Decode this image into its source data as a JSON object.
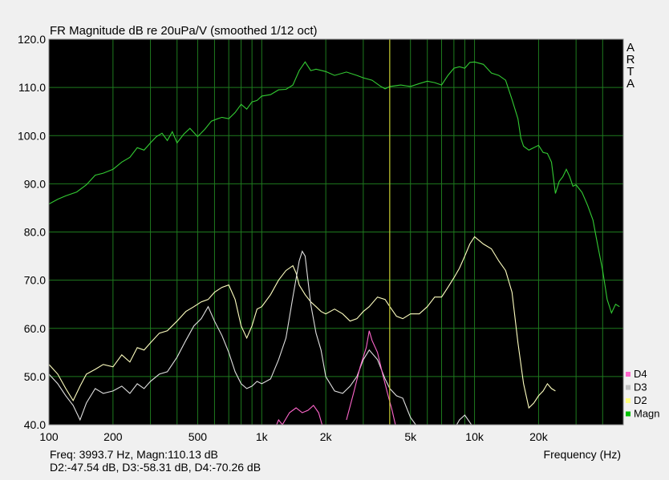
{
  "chart_data": {
    "type": "line",
    "title": "FR Magnitude dB re 20uPa/V (smoothed 1/12 oct)",
    "xlabel": "Frequency (Hz)",
    "ylabel": "",
    "x_scale": "log",
    "xlim": [
      100,
      50000
    ],
    "ylim": [
      40,
      120
    ],
    "grid": true,
    "legend_position": "right-bottom",
    "brand_letters": [
      "A",
      "R",
      "T",
      "A"
    ],
    "y_ticks": [
      {
        "value": 40,
        "label": "40.0"
      },
      {
        "value": 50,
        "label": "50.0"
      },
      {
        "value": 60,
        "label": "60.0"
      },
      {
        "value": 70,
        "label": "70.0"
      },
      {
        "value": 80,
        "label": "80.0"
      },
      {
        "value": 90,
        "label": "90.0"
      },
      {
        "value": 100,
        "label": "100.0"
      },
      {
        "value": 110,
        "label": "110.0"
      },
      {
        "value": 120,
        "label": "120.0"
      }
    ],
    "x_ticks": [
      {
        "value": 100,
        "label": "100"
      },
      {
        "value": 200,
        "label": "200"
      },
      {
        "value": 500,
        "label": "500"
      },
      {
        "value": 1000,
        "label": "1k"
      },
      {
        "value": 2000,
        "label": "2k"
      },
      {
        "value": 5000,
        "label": "5k"
      },
      {
        "value": 10000,
        "label": "10k"
      },
      {
        "value": 20000,
        "label": "20k"
      }
    ],
    "cursor": {
      "freq": 3993.7,
      "readout_line1": "Freq: 3993.7 Hz, Magn:110.13 dB",
      "readout_line2": "D2:-47.54 dB, D3:-58.31 dB, D4:-70.26 dB"
    },
    "colors": {
      "background": "#000000",
      "grid": "#1e7a1e",
      "cursor": "#c8c832",
      "Magn": "#33cc33",
      "D2": "#ffffc0",
      "D3": "#e0e0e0",
      "D4": "#ff66cc"
    },
    "legend": [
      {
        "name": "D4",
        "color": "#ff66cc"
      },
      {
        "name": "D3",
        "color": "#c0c0c0"
      },
      {
        "name": "D2",
        "color": "#ffff80"
      },
      {
        "name": "Magn",
        "color": "#00c000"
      }
    ],
    "series": [
      {
        "name": "Magn",
        "color": "#33cc33",
        "points": [
          [
            100,
            85.8
          ],
          [
            110,
            86.8
          ],
          [
            120,
            87.5
          ],
          [
            135,
            88.3
          ],
          [
            150,
            89.8
          ],
          [
            165,
            91.8
          ],
          [
            180,
            92.2
          ],
          [
            200,
            93.0
          ],
          [
            220,
            94.5
          ],
          [
            240,
            95.5
          ],
          [
            260,
            97.5
          ],
          [
            280,
            97.0
          ],
          [
            300,
            98.5
          ],
          [
            320,
            99.8
          ],
          [
            340,
            100.5
          ],
          [
            360,
            99.0
          ],
          [
            380,
            100.8
          ],
          [
            400,
            98.5
          ],
          [
            430,
            100.3
          ],
          [
            460,
            101.5
          ],
          [
            500,
            99.8
          ],
          [
            540,
            101.3
          ],
          [
            580,
            103.0
          ],
          [
            620,
            103.5
          ],
          [
            650,
            103.8
          ],
          [
            700,
            103.5
          ],
          [
            750,
            104.8
          ],
          [
            800,
            106.5
          ],
          [
            850,
            105.5
          ],
          [
            900,
            107.0
          ],
          [
            950,
            107.3
          ],
          [
            1000,
            108.2
          ],
          [
            1100,
            108.5
          ],
          [
            1200,
            109.5
          ],
          [
            1300,
            109.6
          ],
          [
            1400,
            110.5
          ],
          [
            1500,
            113.5
          ],
          [
            1600,
            115.3
          ],
          [
            1700,
            113.5
          ],
          [
            1800,
            113.8
          ],
          [
            2000,
            113.3
          ],
          [
            2200,
            112.5
          ],
          [
            2500,
            113.2
          ],
          [
            2800,
            112.5
          ],
          [
            3000,
            112.0
          ],
          [
            3300,
            111.5
          ],
          [
            3600,
            110.3
          ],
          [
            3800,
            109.7
          ],
          [
            4000,
            110.2
          ],
          [
            4500,
            110.5
          ],
          [
            5000,
            110.2
          ],
          [
            5500,
            110.8
          ],
          [
            6000,
            111.3
          ],
          [
            6500,
            111.0
          ],
          [
            7000,
            110.5
          ],
          [
            7500,
            112.5
          ],
          [
            8000,
            114.0
          ],
          [
            8500,
            114.3
          ],
          [
            9000,
            114.0
          ],
          [
            9500,
            115.2
          ],
          [
            10000,
            115.3
          ],
          [
            11000,
            114.8
          ],
          [
            12000,
            113.0
          ],
          [
            13000,
            112.5
          ],
          [
            14000,
            111.5
          ],
          [
            15000,
            107.5
          ],
          [
            16000,
            103.5
          ],
          [
            16500,
            99.5
          ],
          [
            17000,
            97.8
          ],
          [
            18000,
            97.0
          ],
          [
            19000,
            97.5
          ],
          [
            20000,
            98.0
          ],
          [
            21000,
            96.5
          ],
          [
            22000,
            96.3
          ],
          [
            23000,
            94.5
          ],
          [
            24000,
            88.0
          ],
          [
            25000,
            90.5
          ],
          [
            26000,
            91.5
          ],
          [
            27000,
            93.0
          ],
          [
            28000,
            91.5
          ],
          [
            29000,
            89.5
          ],
          [
            30000,
            89.8
          ],
          [
            32000,
            88.2
          ],
          [
            34000,
            85.5
          ],
          [
            36000,
            82.5
          ],
          [
            38000,
            77.0
          ],
          [
            40000,
            72.0
          ],
          [
            42000,
            66.0
          ],
          [
            44000,
            63.2
          ],
          [
            46000,
            65.0
          ],
          [
            48000,
            64.5
          ]
        ]
      },
      {
        "name": "D2",
        "color": "#ffffc0",
        "points": [
          [
            100,
            52.5
          ],
          [
            110,
            50.5
          ],
          [
            120,
            47.5
          ],
          [
            130,
            45.0
          ],
          [
            140,
            48.0
          ],
          [
            150,
            50.5
          ],
          [
            165,
            51.5
          ],
          [
            180,
            52.5
          ],
          [
            200,
            52.0
          ],
          [
            220,
            54.5
          ],
          [
            240,
            53.0
          ],
          [
            260,
            56.0
          ],
          [
            280,
            55.5
          ],
          [
            300,
            57.0
          ],
          [
            330,
            59.0
          ],
          [
            360,
            59.5
          ],
          [
            400,
            61.5
          ],
          [
            440,
            63.5
          ],
          [
            480,
            64.5
          ],
          [
            520,
            65.5
          ],
          [
            560,
            66.0
          ],
          [
            600,
            67.5
          ],
          [
            650,
            68.5
          ],
          [
            700,
            69.0
          ],
          [
            750,
            66.0
          ],
          [
            800,
            60.5
          ],
          [
            850,
            58.0
          ],
          [
            900,
            60.5
          ],
          [
            950,
            64.0
          ],
          [
            1000,
            64.5
          ],
          [
            1100,
            67.0
          ],
          [
            1200,
            70.0
          ],
          [
            1300,
            72.0
          ],
          [
            1400,
            73.0
          ],
          [
            1450,
            71.5
          ],
          [
            1500,
            69.0
          ],
          [
            1600,
            67.0
          ],
          [
            1700,
            65.5
          ],
          [
            1800,
            64.5
          ],
          [
            1900,
            63.5
          ],
          [
            2000,
            63.0
          ],
          [
            2200,
            64.0
          ],
          [
            2400,
            63.0
          ],
          [
            2600,
            61.5
          ],
          [
            2800,
            62.0
          ],
          [
            3000,
            63.5
          ],
          [
            3200,
            64.5
          ],
          [
            3500,
            66.5
          ],
          [
            3800,
            66.0
          ],
          [
            4000,
            64.5
          ],
          [
            4300,
            62.5
          ],
          [
            4600,
            62.0
          ],
          [
            5000,
            63.0
          ],
          [
            5500,
            63.0
          ],
          [
            6000,
            64.5
          ],
          [
            6500,
            66.5
          ],
          [
            7000,
            66.5
          ],
          [
            7500,
            68.5
          ],
          [
            8000,
            70.5
          ],
          [
            8500,
            72.5
          ],
          [
            9000,
            75.0
          ],
          [
            9500,
            77.5
          ],
          [
            10000,
            79.0
          ],
          [
            11000,
            77.5
          ],
          [
            12000,
            76.5
          ],
          [
            13000,
            74.0
          ],
          [
            14000,
            72.0
          ],
          [
            15000,
            67.5
          ],
          [
            16000,
            57.0
          ],
          [
            17000,
            48.5
          ],
          [
            18000,
            43.5
          ],
          [
            19000,
            44.5
          ],
          [
            20000,
            46.0
          ],
          [
            21000,
            47.0
          ],
          [
            22000,
            48.5
          ],
          [
            23000,
            47.5
          ],
          [
            24000,
            47.0
          ]
        ]
      },
      {
        "name": "D3",
        "color": "#e0e0e0",
        "points": [
          [
            100,
            50.5
          ],
          [
            110,
            48.5
          ],
          [
            120,
            46.0
          ],
          [
            130,
            44.0
          ],
          [
            140,
            41.0
          ],
          [
            150,
            44.5
          ],
          [
            165,
            47.5
          ],
          [
            180,
            46.5
          ],
          [
            200,
            47.0
          ],
          [
            220,
            48.0
          ],
          [
            240,
            46.5
          ],
          [
            260,
            48.5
          ],
          [
            280,
            47.5
          ],
          [
            300,
            49.0
          ],
          [
            330,
            50.5
          ],
          [
            360,
            51.0
          ],
          [
            400,
            54.0
          ],
          [
            440,
            57.5
          ],
          [
            480,
            60.5
          ],
          [
            520,
            62.0
          ],
          [
            560,
            64.5
          ],
          [
            600,
            61.5
          ],
          [
            650,
            58.5
          ],
          [
            700,
            55.0
          ],
          [
            750,
            51.0
          ],
          [
            800,
            48.5
          ],
          [
            850,
            47.5
          ],
          [
            900,
            48.0
          ],
          [
            950,
            49.0
          ],
          [
            1000,
            48.5
          ],
          [
            1100,
            49.5
          ],
          [
            1200,
            53.5
          ],
          [
            1300,
            58.0
          ],
          [
            1400,
            66.5
          ],
          [
            1500,
            74.0
          ],
          [
            1550,
            76.0
          ],
          [
            1600,
            75.0
          ],
          [
            1700,
            65.0
          ],
          [
            1800,
            59.0
          ],
          [
            1900,
            55.5
          ],
          [
            2000,
            50.0
          ],
          [
            2200,
            47.0
          ],
          [
            2400,
            46.5
          ],
          [
            2600,
            48.0
          ],
          [
            2800,
            50.0
          ],
          [
            3000,
            53.5
          ],
          [
            3200,
            55.5
          ],
          [
            3500,
            53.5
          ],
          [
            3800,
            49.5
          ],
          [
            4000,
            47.5
          ],
          [
            4300,
            46.0
          ],
          [
            4600,
            45.5
          ],
          [
            5000,
            41.5
          ],
          [
            5500,
            39.0
          ]
        ]
      },
      {
        "name": "D4",
        "color": "#ff66cc",
        "points": [
          [
            2500,
            41.0
          ],
          [
            2700,
            46.5
          ],
          [
            2900,
            52.0
          ],
          [
            3100,
            56.0
          ],
          [
            3200,
            59.5
          ],
          [
            3300,
            57.5
          ],
          [
            3500,
            55.0
          ],
          [
            3700,
            50.5
          ],
          [
            3900,
            46.5
          ],
          [
            4100,
            43.0
          ],
          [
            4300,
            39.0
          ]
        ]
      },
      {
        "name": "D3-high",
        "color": "#e0e0e0",
        "points": [
          [
            8000,
            39.0
          ],
          [
            8500,
            41.0
          ],
          [
            9000,
            42.0
          ],
          [
            9500,
            40.5
          ],
          [
            10000,
            39.0
          ]
        ]
      },
      {
        "name": "D4-low",
        "color": "#ff66cc",
        "points": [
          [
            1150,
            39.0
          ],
          [
            1200,
            41.0
          ],
          [
            1250,
            40.0
          ],
          [
            1350,
            42.5
          ],
          [
            1450,
            43.5
          ],
          [
            1550,
            42.5
          ],
          [
            1650,
            43.0
          ],
          [
            1750,
            44.0
          ],
          [
            1850,
            42.5
          ],
          [
            1950,
            39.0
          ]
        ]
      }
    ]
  }
}
